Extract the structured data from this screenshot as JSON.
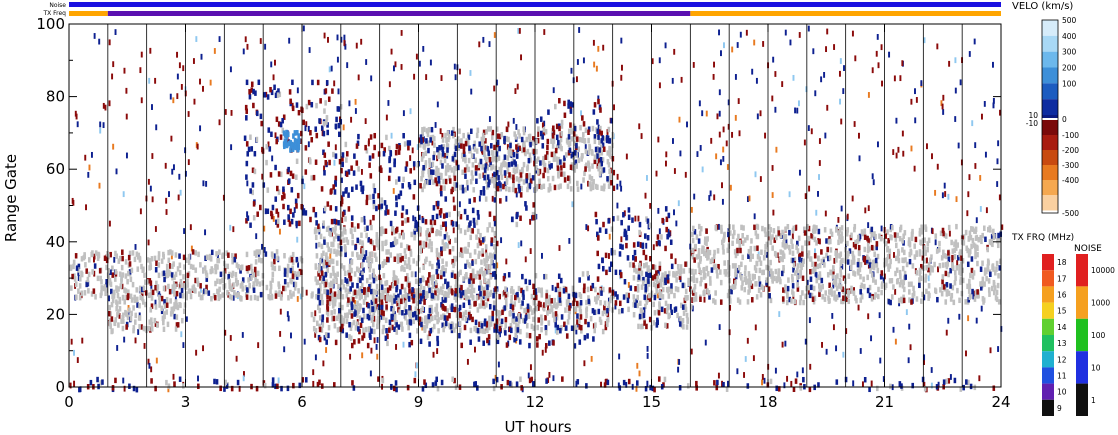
{
  "chart_data": {
    "type": "heatmap",
    "xlabel": "UT hours",
    "ylabel": "Range Gate",
    "xlim": [
      0,
      24
    ],
    "ylim": [
      0,
      100
    ],
    "xticks": [
      0,
      3,
      6,
      9,
      12,
      15,
      18,
      21,
      24
    ],
    "xtick_labels": [
      "0",
      "3",
      "6",
      "9",
      "12",
      "15",
      "18",
      "21",
      "24"
    ],
    "yticks": [
      0,
      20,
      40,
      60,
      80,
      100
    ],
    "ytick_labels": [
      "0",
      "20",
      "40",
      "60",
      "80",
      "100"
    ],
    "hour_marks": [
      1,
      2,
      3,
      4,
      5,
      6,
      7,
      8,
      9,
      10,
      11,
      12,
      13,
      14,
      15,
      16,
      17,
      18,
      19,
      20,
      21,
      22,
      23
    ],
    "top_bars": {
      "noise_label": "Noise",
      "txfreq_label": "TX Freq",
      "noise_color": "#1a10e0",
      "txfreq_segments": [
        {
          "start": 0,
          "end": 1,
          "color": "#ffa500"
        },
        {
          "start": 1,
          "end": 16,
          "color": "#5a10b0"
        },
        {
          "start": 16,
          "end": 24,
          "color": "#ffa500"
        }
      ]
    },
    "scatter_regions": [
      {
        "t0": 0,
        "t1": 6,
        "g0": 25,
        "g1": 38,
        "kind": "ground"
      },
      {
        "t0": 1,
        "t1": 3,
        "g0": 16,
        "g1": 26,
        "kind": "ground"
      },
      {
        "t0": 6.3,
        "t1": 11,
        "g0": 25,
        "g1": 45,
        "kind": "ground"
      },
      {
        "t0": 6.2,
        "t1": 14,
        "g0": 16,
        "g1": 28,
        "kind": "ground"
      },
      {
        "t0": 9,
        "t1": 14,
        "g0": 55,
        "g1": 72,
        "kind": "ground"
      },
      {
        "t0": 14.5,
        "t1": 16,
        "g0": 17,
        "g1": 35,
        "kind": "ground"
      },
      {
        "t0": 16,
        "t1": 24,
        "g0": 24,
        "g1": 45,
        "kind": "ground"
      },
      {
        "t0": 4.5,
        "t1": 7,
        "g0": 45,
        "g1": 85,
        "kind": "ionospheric"
      },
      {
        "t0": 7,
        "t1": 12,
        "g0": 45,
        "g1": 70,
        "kind": "ionospheric"
      },
      {
        "t0": 12,
        "t1": 14,
        "g0": 60,
        "g1": 80,
        "kind": "ionospheric"
      },
      {
        "t0": 13.5,
        "t1": 15.5,
        "g0": 20,
        "g1": 50,
        "kind": "ionospheric"
      },
      {
        "t0": 6.3,
        "t1": 13.5,
        "g0": 12,
        "g1": 32,
        "kind": "ionospheric"
      },
      {
        "t0": 0,
        "t1": 24,
        "g0": 0,
        "g1": 3,
        "kind": "ionospheric"
      }
    ],
    "velocity_colorbar": {
      "label": "VELO (km/s)",
      "tick_labels": [
        "500",
        "400",
        "300",
        "200",
        "100",
        "10",
        "0",
        "-10",
        "-100",
        "-200",
        "-300",
        "-400",
        "-500"
      ],
      "colors_top_to_bottom": [
        "#d6ecfa",
        "#a8d8f5",
        "#6cb8ec",
        "#3d8fd8",
        "#1c5cc0",
        "#0d2ca0",
        "#0a1a80",
        "#ffffff",
        "#7a0a0a",
        "#a81c10",
        "#c84a10",
        "#e87a20",
        "#f5a850",
        "#fad0a0"
      ]
    },
    "txfreq_colorbar": {
      "label": "TX FRQ (MHz)",
      "tick_labels": [
        "18",
        "17",
        "16",
        "15",
        "14",
        "13",
        "12",
        "11",
        "10",
        "9"
      ],
      "colors_top_to_bottom": [
        "#e02020",
        "#f05a20",
        "#f5a020",
        "#f5d020",
        "#60d030",
        "#20c060",
        "#20b0d0",
        "#2050e0",
        "#6020b0",
        "#101010"
      ]
    },
    "noise_colorbar": {
      "label": "NOISE",
      "tick_labels": [
        "10000",
        "1000",
        "100",
        "10",
        "1"
      ],
      "colors_top_to_bottom": [
        "#e02020",
        "#f5a020",
        "#20c020",
        "#2030e0",
        "#101010"
      ]
    }
  },
  "colors": {
    "ground_scatter": "#c0c0c0",
    "velocity_positive": "#0d2090",
    "velocity_negative": "#8b0a0a",
    "frame": "#000000"
  }
}
